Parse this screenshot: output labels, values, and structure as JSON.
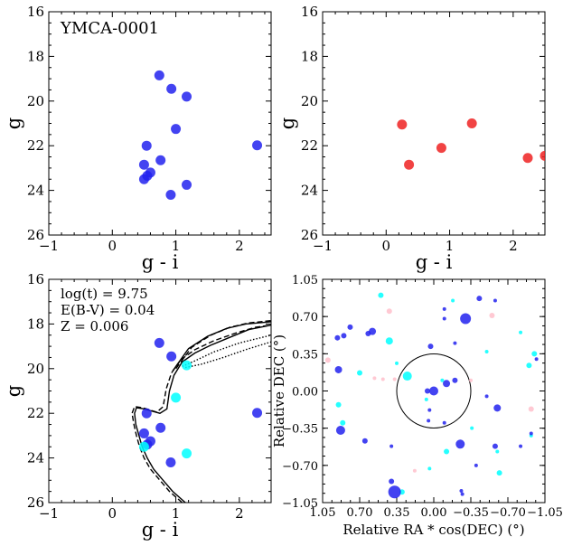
{
  "chart_data": [
    {
      "type": "scatter",
      "panel": "top-left",
      "xlabel": "g - i",
      "ylabel": "g",
      "xlim": [
        -1,
        2.5
      ],
      "ylim": [
        26,
        16
      ],
      "y_inverted": true,
      "xticks": [
        "−1",
        "0",
        "1",
        "2"
      ],
      "yticks": [
        "16",
        "18",
        "20",
        "22",
        "24",
        "26"
      ],
      "annotation": "YMCA-0001",
      "marker_color": "#2222ee",
      "points": [
        {
          "x": 0.74,
          "y": 18.85
        },
        {
          "x": 0.93,
          "y": 19.45
        },
        {
          "x": 1.17,
          "y": 19.8
        },
        {
          "x": 1.0,
          "y": 21.25
        },
        {
          "x": 0.54,
          "y": 22.0
        },
        {
          "x": 2.28,
          "y": 21.98
        },
        {
          "x": 0.76,
          "y": 22.65
        },
        {
          "x": 0.5,
          "y": 22.85
        },
        {
          "x": 0.6,
          "y": 23.2
        },
        {
          "x": 0.55,
          "y": 23.35
        },
        {
          "x": 0.5,
          "y": 23.5
        },
        {
          "x": 1.17,
          "y": 23.75
        },
        {
          "x": 0.92,
          "y": 24.2
        }
      ]
    },
    {
      "type": "scatter",
      "panel": "top-right",
      "xlabel": "g - i",
      "ylabel": "g",
      "xlim": [
        -1,
        2.5
      ],
      "ylim": [
        26,
        16
      ],
      "y_inverted": true,
      "xticks": [
        "−1",
        "0",
        "1",
        "2"
      ],
      "yticks": [
        "16",
        "18",
        "20",
        "22",
        "24",
        "26"
      ],
      "marker_color": "#ee2222",
      "points": [
        {
          "x": 0.25,
          "y": 21.05
        },
        {
          "x": 1.35,
          "y": 21.0
        },
        {
          "x": 0.87,
          "y": 22.1
        },
        {
          "x": 0.36,
          "y": 22.85
        },
        {
          "x": 2.23,
          "y": 22.55
        },
        {
          "x": 2.5,
          "y": 22.45
        }
      ]
    },
    {
      "type": "scatter",
      "panel": "bottom-left",
      "xlabel": "g - i",
      "ylabel": "g",
      "xlim": [
        -1,
        2.5
      ],
      "ylim": [
        26,
        16
      ],
      "y_inverted": true,
      "xticks": [
        "−1",
        "0",
        "1",
        "2"
      ],
      "yticks": [
        "16",
        "18",
        "20",
        "22",
        "24",
        "26"
      ],
      "annotations": [
        "log(t) = 9.75",
        "E(B-V) = 0.04",
        "Z = 0.006"
      ],
      "blue_points": [
        {
          "x": 0.74,
          "y": 18.85
        },
        {
          "x": 0.93,
          "y": 19.45
        },
        {
          "x": 0.54,
          "y": 22.0
        },
        {
          "x": 2.28,
          "y": 21.98
        },
        {
          "x": 0.76,
          "y": 22.65
        },
        {
          "x": 0.5,
          "y": 22.9
        },
        {
          "x": 0.6,
          "y": 23.25
        },
        {
          "x": 0.55,
          "y": 23.4
        },
        {
          "x": 0.92,
          "y": 24.2
        }
      ],
      "cyan_points": [
        {
          "x": 1.17,
          "y": 19.85
        },
        {
          "x": 1.0,
          "y": 21.3
        },
        {
          "x": 1.17,
          "y": 23.8
        },
        {
          "x": 0.5,
          "y": 23.5
        }
      ],
      "isochrones": [
        {
          "style": "solid",
          "points": [
            [
              1.15,
              26.0
            ],
            [
              0.95,
              25.5
            ],
            [
              0.8,
              25.0
            ],
            [
              0.65,
              24.5
            ],
            [
              0.55,
              24.0
            ],
            [
              0.47,
              23.5
            ],
            [
              0.42,
              23.0
            ],
            [
              0.37,
              22.5
            ],
            [
              0.35,
              22.0
            ],
            [
              0.38,
              21.75
            ],
            [
              0.5,
              21.8
            ],
            [
              0.75,
              22.0
            ],
            [
              0.86,
              21.8
            ],
            [
              0.9,
              21.0
            ],
            [
              0.97,
              20.3
            ],
            [
              1.1,
              19.7
            ],
            [
              1.3,
              19.3
            ],
            [
              1.55,
              18.95
            ],
            [
              1.85,
              18.6
            ],
            [
              2.15,
              18.25
            ],
            [
              2.5,
              18.05
            ]
          ]
        },
        {
          "style": "dashed",
          "points": [
            [
              1.1,
              26.0
            ],
            [
              0.9,
              25.5
            ],
            [
              0.75,
              25.0
            ],
            [
              0.6,
              24.5
            ],
            [
              0.5,
              24.0
            ],
            [
              0.43,
              23.5
            ],
            [
              0.38,
              23.0
            ],
            [
              0.34,
              22.5
            ],
            [
              0.31,
              22.0
            ],
            [
              0.35,
              21.7
            ],
            [
              0.48,
              21.75
            ],
            [
              0.7,
              21.95
            ],
            [
              0.8,
              21.7
            ],
            [
              0.85,
              20.9
            ],
            [
              0.93,
              20.2
            ],
            [
              1.08,
              19.6
            ],
            [
              1.3,
              19.15
            ],
            [
              1.6,
              18.75
            ],
            [
              1.95,
              18.4
            ],
            [
              2.25,
              18.15
            ],
            [
              2.5,
              18.05
            ]
          ]
        },
        {
          "style": "dotted",
          "points": [
            [
              1.1,
              19.9
            ],
            [
              1.3,
              19.65
            ],
            [
              1.6,
              19.25
            ],
            [
              2.0,
              18.85
            ],
            [
              2.5,
              18.5
            ]
          ]
        },
        {
          "style": "dotted",
          "points": [
            [
              1.15,
              19.95
            ],
            [
              1.4,
              19.8
            ],
            [
              1.75,
              19.5
            ],
            [
              2.1,
              19.15
            ],
            [
              2.5,
              18.8
            ]
          ]
        },
        {
          "style": "solid",
          "points": [
            [
              0.95,
              20.1
            ],
            [
              1.2,
              19.1
            ],
            [
              1.5,
              18.55
            ],
            [
              1.8,
              18.2
            ],
            [
              2.1,
              18.0
            ],
            [
              2.5,
              17.9
            ]
          ]
        },
        {
          "style": "dashed",
          "points": [
            [
              1.0,
              20.0
            ],
            [
              1.25,
              19.05
            ],
            [
              1.55,
              18.5
            ],
            [
              1.85,
              18.15
            ],
            [
              2.15,
              17.95
            ],
            [
              2.5,
              17.85
            ]
          ]
        }
      ]
    },
    {
      "type": "scatter",
      "panel": "bottom-right",
      "xlabel": "Relative RA * cos(DEC) (°)",
      "ylabel": "Relative DEC (°)",
      "xlim": [
        1.05,
        -1.05
      ],
      "ylim": [
        -1.05,
        1.05
      ],
      "xticks": [
        "1.05",
        "0.70",
        "0.35",
        "0.00",
        "−0.35",
        "−0.70",
        "−1.05"
      ],
      "yticks": [
        "1.05",
        "0.70",
        "0.35",
        "0.00",
        "−0.35",
        "−0.70",
        "−1.05"
      ],
      "circle_radius": 0.35,
      "blue_points": [
        {
          "x": 0.79,
          "y": 0.6,
          "s": 3
        },
        {
          "x": 0.85,
          "y": 0.52,
          "s": 3
        },
        {
          "x": 0.91,
          "y": 0.5,
          "s": 3
        },
        {
          "x": 0.62,
          "y": 0.54,
          "s": 3
        },
        {
          "x": 0.58,
          "y": 0.56,
          "s": 4
        },
        {
          "x": 0.9,
          "y": 0.2,
          "s": 4
        },
        {
          "x": 0.88,
          "y": -0.37,
          "s": 5
        },
        {
          "x": 0.65,
          "y": -0.47,
          "s": 3
        },
        {
          "x": 0.4,
          "y": -0.52,
          "s": 2
        },
        {
          "x": 0.4,
          "y": -0.85,
          "s": 3
        },
        {
          "x": 0.37,
          "y": -0.95,
          "s": 7
        },
        {
          "x": 0.03,
          "y": 0.42,
          "s": 3
        },
        {
          "x": -0.1,
          "y": 0.77,
          "s": 2
        },
        {
          "x": -0.1,
          "y": 0.68,
          "s": 2
        },
        {
          "x": -0.3,
          "y": 0.68,
          "s": 6
        },
        {
          "x": -0.2,
          "y": 0.45,
          "s": 2
        },
        {
          "x": -0.43,
          "y": 0.87,
          "s": 3
        },
        {
          "x": -0.58,
          "y": 0.85,
          "s": 2
        },
        {
          "x": 0.06,
          "y": 0.0,
          "s": 3
        },
        {
          "x": 0.0,
          "y": 0.0,
          "s": 5
        },
        {
          "x": -0.12,
          "y": 0.07,
          "s": 4
        },
        {
          "x": -0.2,
          "y": 0.1,
          "s": 3
        },
        {
          "x": -0.1,
          "y": -0.3,
          "s": 2
        },
        {
          "x": 0.04,
          "y": -0.18,
          "s": 2
        },
        {
          "x": 0.05,
          "y": -0.28,
          "s": 2
        },
        {
          "x": -0.25,
          "y": -0.5,
          "s": 5
        },
        {
          "x": -0.5,
          "y": -0.05,
          "s": 2
        },
        {
          "x": -0.6,
          "y": -0.16,
          "s": 4
        },
        {
          "x": -0.58,
          "y": -0.52,
          "s": 3
        },
        {
          "x": -0.82,
          "y": -0.52,
          "s": 2
        },
        {
          "x": -0.97,
          "y": 0.3,
          "s": 2
        },
        {
          "x": -0.92,
          "y": -0.4,
          "s": 2
        },
        {
          "x": -0.4,
          "y": -0.7,
          "s": 2
        },
        {
          "x": -0.27,
          "y": -0.97,
          "s": 2
        },
        {
          "x": -0.26,
          "y": -0.94,
          "s": 2
        }
      ],
      "cyan_points": [
        {
          "x": 0.5,
          "y": 0.9,
          "s": 3
        },
        {
          "x": 0.42,
          "y": 0.47,
          "s": 4
        },
        {
          "x": 0.7,
          "y": 0.17,
          "s": 3
        },
        {
          "x": 0.35,
          "y": 0.26,
          "s": 2
        },
        {
          "x": 0.25,
          "y": 0.14,
          "s": 5
        },
        {
          "x": 0.07,
          "y": -0.08,
          "s": 2
        },
        {
          "x": 0.9,
          "y": -0.13,
          "s": 3
        },
        {
          "x": 0.86,
          "y": -0.3,
          "s": 3
        },
        {
          "x": -0.08,
          "y": 0.1,
          "s": 2
        },
        {
          "x": -0.18,
          "y": 0.85,
          "s": 2
        },
        {
          "x": -0.36,
          "y": -0.35,
          "s": 2
        },
        {
          "x": -0.5,
          "y": 0.37,
          "s": 2
        },
        {
          "x": -0.82,
          "y": 0.55,
          "s": 2
        },
        {
          "x": -0.95,
          "y": 0.35,
          "s": 3
        },
        {
          "x": -0.9,
          "y": 0.24,
          "s": 3
        },
        {
          "x": 0.04,
          "y": -0.73,
          "s": 2
        },
        {
          "x": -0.12,
          "y": -0.57,
          "s": 3
        },
        {
          "x": -0.6,
          "y": -0.57,
          "s": 2
        },
        {
          "x": -0.62,
          "y": -0.77,
          "s": 3
        },
        {
          "x": 0.3,
          "y": -0.95,
          "s": 3
        },
        {
          "x": -0.92,
          "y": -0.42,
          "s": 2
        }
      ],
      "pink_points": [
        {
          "x": 1.0,
          "y": 0.29,
          "s": 3
        },
        {
          "x": 0.42,
          "y": 0.75,
          "s": 3
        },
        {
          "x": 0.56,
          "y": 0.12,
          "s": 2
        },
        {
          "x": 0.48,
          "y": 0.11,
          "s": 2
        },
        {
          "x": 0.37,
          "y": 0.11,
          "s": 2
        },
        {
          "x": -0.35,
          "y": 0.1,
          "s": 2
        },
        {
          "x": -0.55,
          "y": 0.71,
          "s": 3
        },
        {
          "x": -0.92,
          "y": -0.17,
          "s": 3
        },
        {
          "x": 0.18,
          "y": -0.75,
          "s": 2
        }
      ]
    }
  ]
}
